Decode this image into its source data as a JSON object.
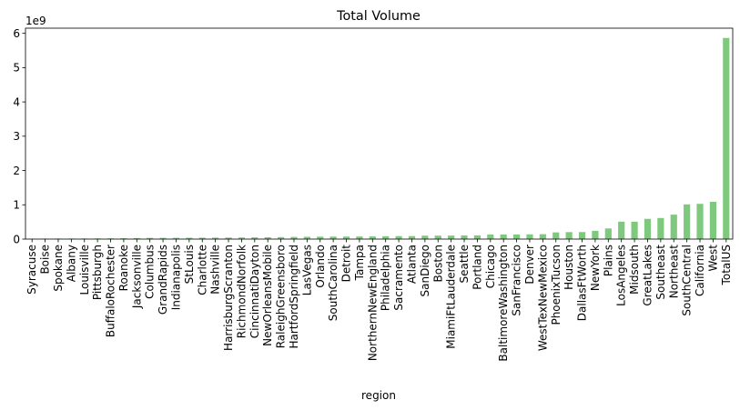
{
  "chart_data": {
    "type": "bar",
    "title": "Total Volume",
    "xlabel": "region",
    "ylabel": "",
    "y_offset_label": "1e9",
    "y_scale": 1000000000,
    "ylim": [
      0,
      6.15
    ],
    "yticks": [
      0,
      1,
      2,
      3,
      4,
      5,
      6
    ],
    "bar_color": "#7fc97f",
    "grid": false,
    "legend": "none",
    "categories": [
      "Syracuse",
      "Boise",
      "Spokane",
      "Albany",
      "Louisville",
      "Pittsburgh",
      "BuffaloRochester",
      "Roanoke",
      "Jacksonville",
      "Columbus",
      "GrandRapids",
      "Indianapolis",
      "StLouis",
      "Charlotte",
      "Nashville",
      "HarrisburgScranton",
      "RichmondNorfolk",
      "CincinnatiDayton",
      "NewOrleansMobile",
      "RaleighGreensboro",
      "HartfordSpringfield",
      "LasVegas",
      "Orlando",
      "SouthCarolina",
      "Detroit",
      "Tampa",
      "NorthernNewEngland",
      "Philadelphia",
      "Sacramento",
      "Atlanta",
      "SanDiego",
      "Boston",
      "MiamiFtLauderdale",
      "Seattle",
      "Portland",
      "Chicago",
      "BaltimoreWashington",
      "SanFrancisco",
      "Denver",
      "WestTexNewMexico",
      "PhoenixTucson",
      "Houston",
      "DallasFtWorth",
      "NewYork",
      "Plains",
      "LosAngeles",
      "Midsouth",
      "GreatLakes",
      "Southeast",
      "Northeast",
      "SouthCentral",
      "California",
      "West",
      "TotalUS"
    ],
    "values": [
      0.01,
      0.014,
      0.016,
      0.016,
      0.017,
      0.019,
      0.022,
      0.025,
      0.029,
      0.035,
      0.036,
      0.037,
      0.039,
      0.041,
      0.042,
      0.045,
      0.047,
      0.05,
      0.054,
      0.058,
      0.063,
      0.067,
      0.071,
      0.073,
      0.074,
      0.076,
      0.078,
      0.083,
      0.087,
      0.088,
      0.1,
      0.101,
      0.103,
      0.107,
      0.108,
      0.133,
      0.134,
      0.136,
      0.138,
      0.144,
      0.195,
      0.203,
      0.205,
      0.24,
      0.31,
      0.508,
      0.508,
      0.59,
      0.615,
      0.713,
      1.012,
      1.028,
      1.087,
      5.865
    ]
  }
}
